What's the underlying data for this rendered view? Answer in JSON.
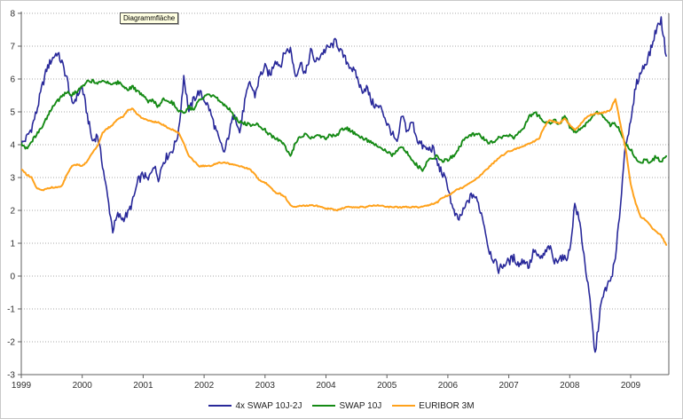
{
  "tooltip": {
    "label": "Diagrammfläche"
  },
  "colors": {
    "series_blue": "#29299A",
    "series_green": "#158A15",
    "series_orange": "#FFA21C",
    "gridline": "#a9a9a9",
    "axis": "#5f5f5f",
    "tick_text": "#2f2f2f",
    "tooltip_bg": "#ffffe1",
    "plot_bg": "#ffffff"
  },
  "chart_data": {
    "type": "line",
    "title": "",
    "xlabel": "",
    "ylabel": "",
    "x_tick_labels": [
      "1999",
      "2000",
      "2001",
      "2002",
      "2003",
      "2004",
      "2005",
      "2006",
      "2007",
      "2008",
      "2009"
    ],
    "y_tick_labels": [
      "8",
      "7",
      "6",
      "5",
      "4",
      "3",
      "2",
      "1",
      "0",
      "-1",
      "-2",
      "-3"
    ],
    "y_ticks": [
      8,
      7,
      6,
      5,
      4,
      3,
      2,
      1,
      0,
      -1,
      -2,
      -3
    ],
    "ylim": [
      -3,
      8
    ],
    "xlim": [
      1999.0,
      2009.63
    ],
    "x_start_year": 1999,
    "x_resolution": "monthly",
    "grid": "horizontal-dotted",
    "legend_position": "bottom-center",
    "series": [
      {
        "name": "4x SWAP 10J-2J",
        "color": "#29299A",
        "values": [
          4.0,
          4.2,
          4.5,
          5.0,
          5.7,
          6.3,
          6.6,
          6.8,
          6.5,
          6.0,
          5.2,
          5.5,
          5.75,
          4.9,
          4.1,
          4.3,
          3.4,
          2.4,
          1.4,
          1.85,
          1.75,
          1.9,
          2.3,
          2.9,
          3.1,
          2.9,
          3.4,
          3.0,
          3.5,
          3.7,
          3.9,
          4.4,
          6.1,
          5.0,
          5.4,
          5.6,
          5.4,
          5.1,
          4.6,
          4.1,
          3.75,
          4.4,
          5.0,
          4.35,
          5.3,
          5.9,
          5.5,
          6.1,
          6.35,
          6.1,
          6.6,
          6.4,
          6.85,
          6.9,
          6.1,
          6.5,
          6.15,
          6.85,
          6.5,
          6.75,
          6.9,
          7.0,
          7.15,
          6.8,
          6.55,
          6.35,
          6.1,
          5.65,
          5.75,
          5.3,
          5.15,
          5.1,
          4.65,
          4.35,
          4.0,
          4.9,
          4.4,
          4.7,
          4.15,
          3.95,
          3.85,
          3.9,
          3.4,
          3.1,
          2.75,
          2.0,
          1.7,
          1.95,
          2.3,
          2.5,
          2.2,
          1.7,
          0.85,
          0.5,
          0.2,
          0.35,
          0.45,
          0.55,
          0.35,
          0.5,
          0.3,
          0.8,
          0.5,
          0.65,
          0.9,
          0.4,
          0.6,
          0.5,
          0.75,
          2.2,
          1.6,
          0.4,
          -0.8,
          -2.4,
          -1.0,
          -0.4,
          -0.15,
          0.5,
          2.2,
          4.1,
          4.6,
          5.8,
          6.2,
          6.5,
          6.9,
          7.5,
          7.8,
          6.7
        ]
      },
      {
        "name": "SWAP 10J",
        "color": "#158A15",
        "values": [
          4.05,
          3.9,
          4.1,
          4.3,
          4.5,
          4.8,
          5.1,
          5.3,
          5.5,
          5.6,
          5.5,
          5.65,
          5.75,
          5.9,
          5.95,
          5.9,
          5.95,
          5.9,
          5.85,
          5.9,
          5.8,
          5.7,
          5.75,
          5.6,
          5.5,
          5.3,
          5.35,
          5.15,
          5.4,
          5.35,
          5.25,
          5.05,
          4.95,
          5.15,
          5.05,
          5.35,
          5.45,
          5.5,
          5.45,
          5.35,
          5.2,
          5.1,
          4.85,
          4.7,
          4.65,
          4.6,
          4.65,
          4.55,
          4.45,
          4.3,
          4.2,
          4.1,
          3.95,
          3.65,
          4.05,
          4.25,
          4.3,
          4.2,
          4.3,
          4.25,
          4.2,
          4.3,
          4.25,
          4.45,
          4.5,
          4.4,
          4.3,
          4.2,
          4.15,
          4.05,
          3.95,
          3.85,
          3.8,
          3.65,
          3.85,
          3.9,
          3.75,
          3.55,
          3.35,
          3.25,
          3.5,
          3.6,
          3.65,
          3.5,
          3.55,
          3.65,
          3.85,
          4.1,
          4.25,
          4.3,
          4.35,
          4.2,
          4.05,
          4.1,
          4.2,
          4.25,
          4.3,
          4.2,
          4.4,
          4.55,
          4.85,
          5.0,
          4.85,
          4.7,
          4.65,
          4.75,
          4.6,
          4.9,
          4.55,
          4.4,
          4.5,
          4.6,
          4.75,
          5.0,
          4.95,
          4.8,
          4.6,
          4.65,
          4.4,
          4.0,
          3.85,
          3.6,
          3.45,
          3.55,
          3.45,
          3.65,
          3.5,
          3.65
        ]
      },
      {
        "name": "EURIBOR 3M",
        "color": "#FFA21C",
        "values": [
          3.25,
          3.1,
          3.0,
          2.7,
          2.6,
          2.65,
          2.7,
          2.7,
          2.75,
          3.1,
          3.35,
          3.4,
          3.35,
          3.5,
          3.75,
          3.95,
          4.35,
          4.5,
          4.6,
          4.78,
          4.85,
          5.05,
          5.1,
          4.9,
          4.8,
          4.75,
          4.7,
          4.68,
          4.6,
          4.5,
          4.45,
          4.35,
          4.05,
          3.65,
          3.5,
          3.35,
          3.35,
          3.35,
          3.4,
          3.45,
          3.45,
          3.42,
          3.4,
          3.35,
          3.3,
          3.25,
          3.1,
          2.9,
          2.85,
          2.7,
          2.55,
          2.5,
          2.4,
          2.15,
          2.1,
          2.15,
          2.15,
          2.15,
          2.15,
          2.1,
          2.05,
          2.05,
          2.0,
          2.05,
          2.1,
          2.1,
          2.1,
          2.1,
          2.1,
          2.15,
          2.15,
          2.15,
          2.1,
          2.1,
          2.1,
          2.1,
          2.1,
          2.1,
          2.1,
          2.1,
          2.15,
          2.2,
          2.25,
          2.4,
          2.45,
          2.55,
          2.65,
          2.7,
          2.8,
          2.9,
          3.0,
          3.15,
          3.3,
          3.45,
          3.6,
          3.7,
          3.8,
          3.85,
          3.9,
          3.95,
          4.05,
          4.1,
          4.2,
          4.55,
          4.75,
          4.7,
          4.65,
          4.8,
          4.6,
          4.45,
          4.6,
          4.8,
          4.9,
          4.95,
          4.95,
          5.0,
          5.05,
          5.4,
          4.6,
          3.9,
          2.8,
          2.2,
          1.8,
          1.7,
          1.5,
          1.35,
          1.25,
          0.95
        ]
      }
    ]
  }
}
